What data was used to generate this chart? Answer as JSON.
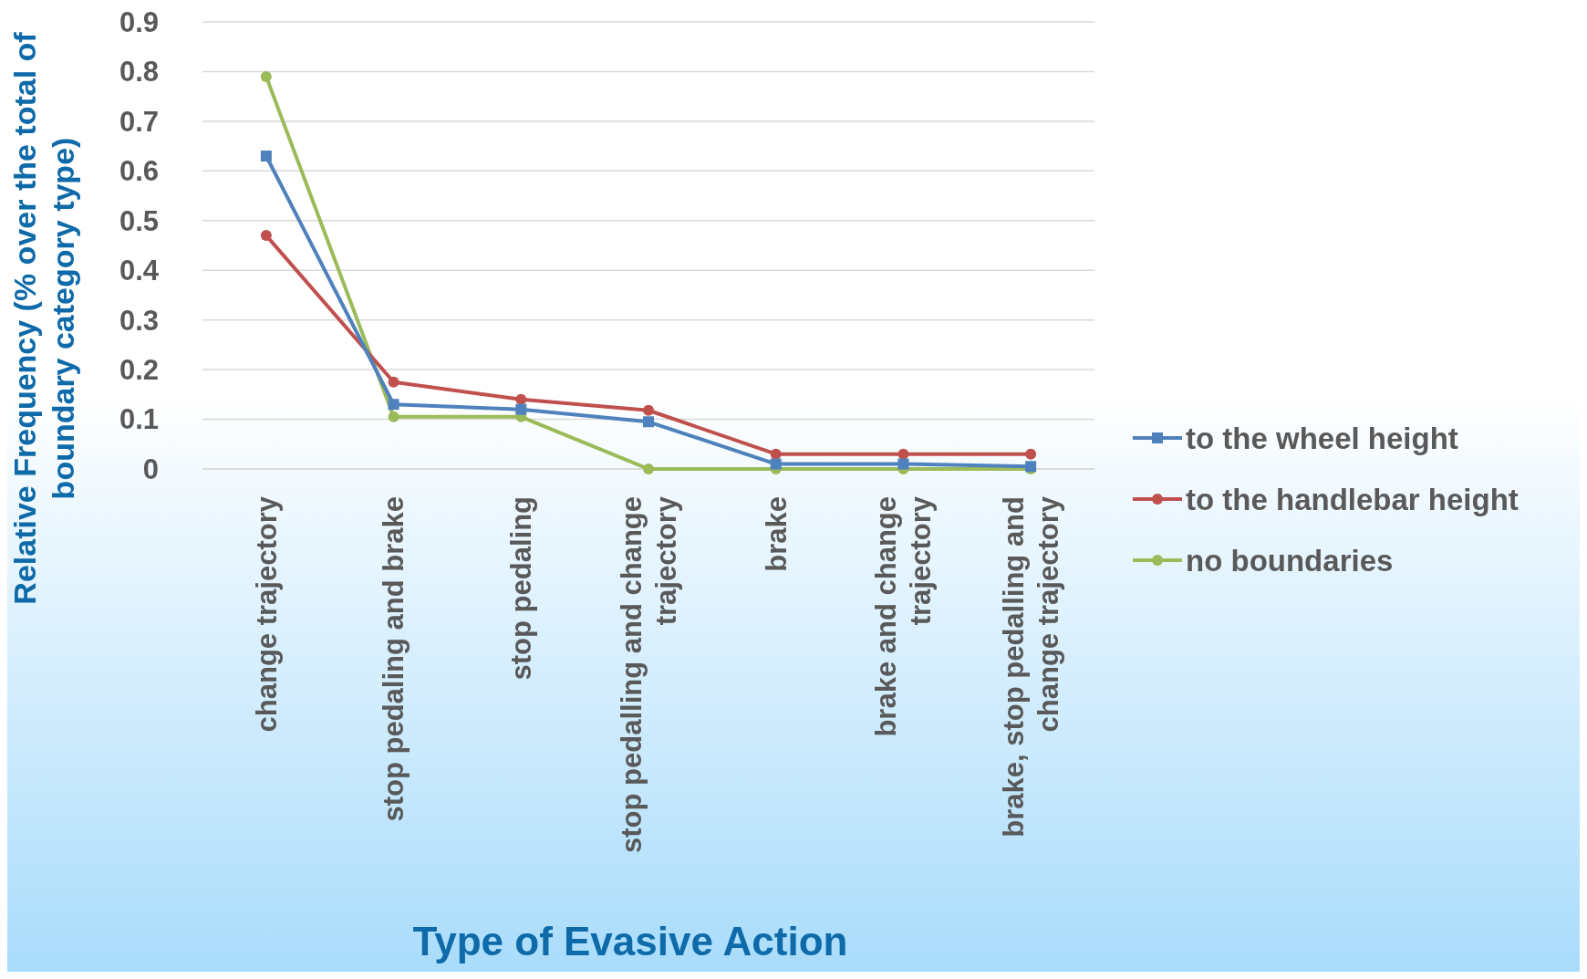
{
  "chart_data": {
    "type": "line",
    "xlabel": "Type of Evasive Action",
    "ylabel": "Relative Frequency (% over the total of boundary category type)",
    "categories": [
      "change trajectory",
      "stop pedaling and brake",
      "stop pedaling",
      "stop pedalling and change trajectory",
      "brake",
      "brake and change trajectory",
      "brake, stop pedalling and change trajectory"
    ],
    "series": [
      {
        "name": "to the wheel height",
        "color": "#4f81bd",
        "marker": "square",
        "values": [
          0.63,
          0.13,
          0.12,
          0.095,
          0.01,
          0.01,
          0.005
        ]
      },
      {
        "name": "to the handlebar height",
        "color": "#c0504d",
        "marker": "circle",
        "values": [
          0.47,
          0.175,
          0.14,
          0.118,
          0.03,
          0.03,
          0.03
        ]
      },
      {
        "name": "no boundaries",
        "color": "#9bbb59",
        "marker": "circle",
        "values": [
          0.79,
          0.105,
          0.105,
          0,
          0,
          0,
          0
        ]
      }
    ],
    "ylim": [
      0,
      0.9
    ],
    "yticks": [
      0,
      0.1,
      0.2,
      0.3,
      0.4,
      0.5,
      0.6,
      0.7,
      0.8,
      0.9
    ],
    "grid": "y",
    "legend": "right"
  }
}
